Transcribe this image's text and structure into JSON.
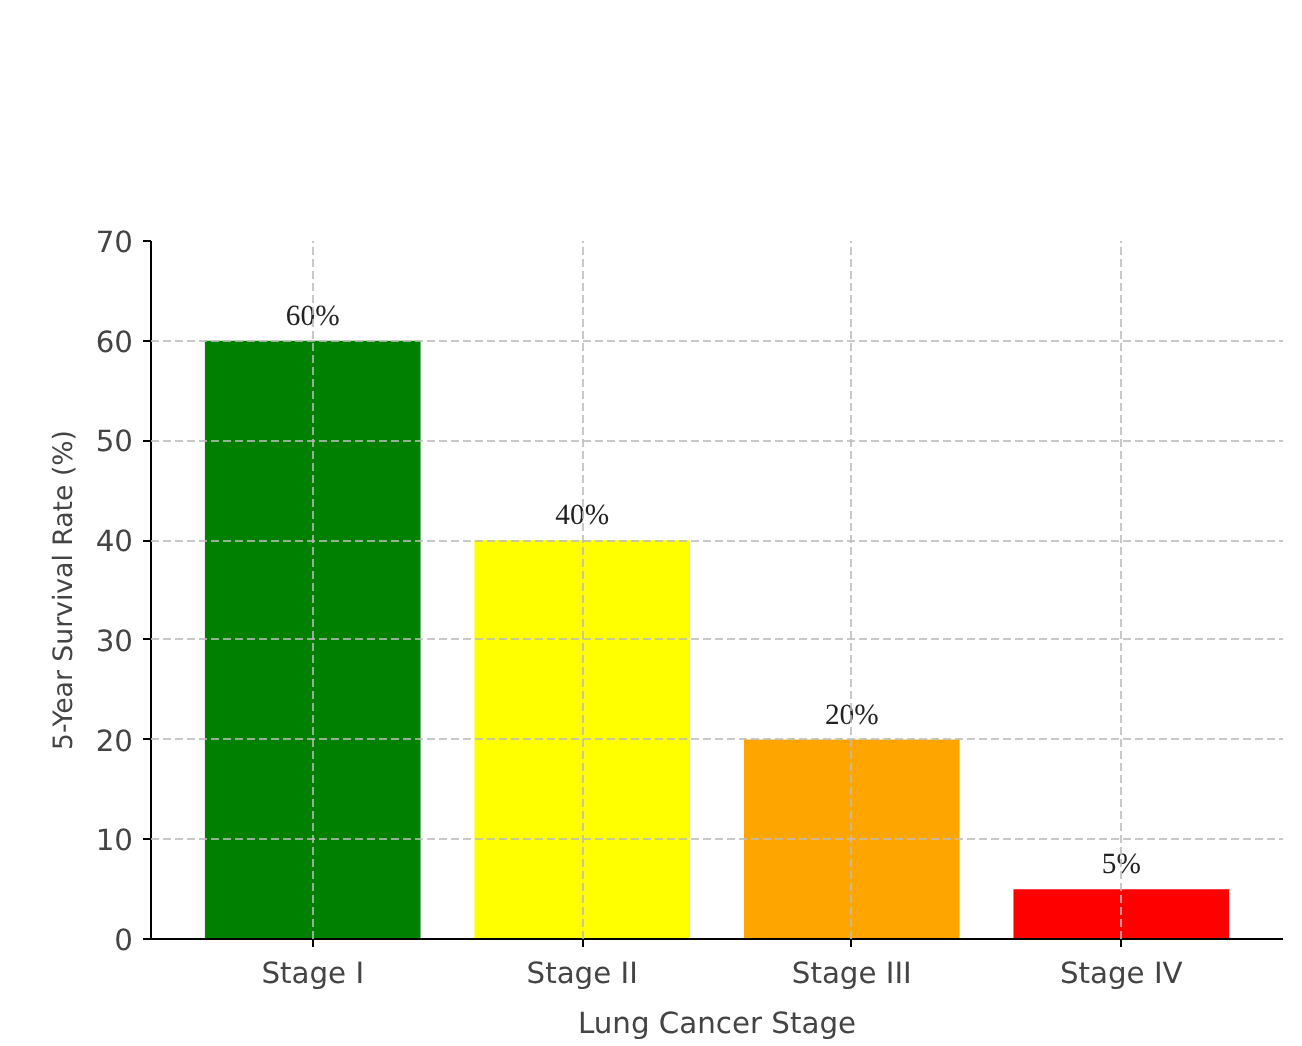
{
  "chart_data": {
    "type": "bar",
    "categories": [
      "Stage I",
      "Stage II",
      "Stage III",
      "Stage IV"
    ],
    "values": [
      60,
      40,
      20,
      5
    ],
    "colors": [
      "#008000",
      "#ffff00",
      "#ffa500",
      "#ff0000"
    ],
    "value_labels": [
      "60%",
      "40%",
      "20%",
      "5%"
    ],
    "xlabel": "Lung Cancer Stage",
    "ylabel": "5-Year Survival Rate (%)",
    "ylim": [
      0,
      70
    ],
    "yticks": [
      0,
      10,
      20,
      30,
      40,
      50,
      60,
      70
    ],
    "grid": true
  }
}
